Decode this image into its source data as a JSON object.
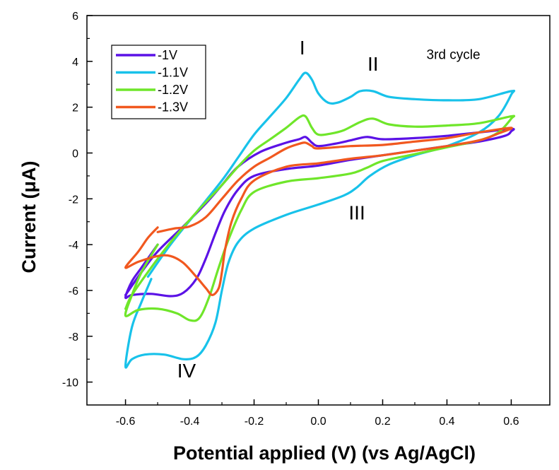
{
  "chart_data": {
    "type": "line",
    "title": "",
    "xlabel": "Potential applied (V) (vs Ag/AgCl)",
    "ylabel": "Current (μA)",
    "xlim": [
      -0.72,
      0.72
    ],
    "ylim": [
      -11,
      6
    ],
    "x_ticks": [
      -0.6,
      -0.4,
      -0.2,
      0.0,
      0.2,
      0.4,
      0.6
    ],
    "x_tick_labels": [
      "-0.6",
      "-0.4",
      "-0.2",
      "0.0",
      "0.2",
      "0.4",
      "0.6"
    ],
    "y_ticks": [
      -10,
      -8,
      -6,
      -4,
      -2,
      0,
      2,
      4,
      6
    ],
    "y_tick_labels": [
      "-10",
      "-8",
      "-6",
      "-4",
      "-2",
      "0",
      "2",
      "4",
      "6"
    ],
    "grid": false,
    "legend_position": "top-left",
    "annotations": [
      {
        "text": "3rd cycle",
        "x": 0.42,
        "y": 4.1,
        "style": "small"
      },
      {
        "text": "I",
        "x": -0.05,
        "y": 4.3,
        "style": "roman"
      },
      {
        "text": "II",
        "x": 0.17,
        "y": 3.6,
        "style": "roman"
      },
      {
        "text": "III",
        "x": 0.12,
        "y": -2.9,
        "style": "roman"
      },
      {
        "text": "IV",
        "x": -0.41,
        "y": -9.8,
        "style": "roman"
      }
    ],
    "series": [
      {
        "name": "-1V",
        "color": "#5b12e6",
        "points": [
          [
            -0.5,
            -4.0
          ],
          [
            -0.55,
            -5.0
          ],
          [
            -0.58,
            -5.6
          ],
          [
            -0.6,
            -6.3
          ],
          [
            -0.58,
            -6.2
          ],
          [
            -0.52,
            -6.15
          ],
          [
            -0.46,
            -6.25
          ],
          [
            -0.42,
            -6.1
          ],
          [
            -0.38,
            -5.5
          ],
          [
            -0.35,
            -4.6
          ],
          [
            -0.32,
            -3.5
          ],
          [
            -0.29,
            -2.5
          ],
          [
            -0.25,
            -1.6
          ],
          [
            -0.2,
            -1.0
          ],
          [
            -0.1,
            -0.7
          ],
          [
            0.0,
            -0.55
          ],
          [
            0.1,
            -0.3
          ],
          [
            0.2,
            -0.1
          ],
          [
            0.3,
            0.1
          ],
          [
            0.4,
            0.3
          ],
          [
            0.5,
            0.5
          ],
          [
            0.58,
            0.75
          ],
          [
            0.6,
            0.95
          ],
          [
            0.6,
            1.05
          ],
          [
            0.5,
            0.9
          ],
          [
            0.4,
            0.75
          ],
          [
            0.3,
            0.65
          ],
          [
            0.2,
            0.6
          ],
          [
            0.15,
            0.7
          ],
          [
            0.1,
            0.55
          ],
          [
            0.05,
            0.4
          ],
          [
            0.0,
            0.3
          ],
          [
            -0.02,
            0.45
          ],
          [
            -0.04,
            0.7
          ],
          [
            -0.06,
            0.6
          ],
          [
            -0.1,
            0.45
          ],
          [
            -0.18,
            0.05
          ],
          [
            -0.25,
            -0.6
          ],
          [
            -0.3,
            -1.4
          ],
          [
            -0.35,
            -2.2
          ],
          [
            -0.42,
            -3.2
          ],
          [
            -0.5,
            -4.3
          ],
          [
            -0.55,
            -5.2
          ],
          [
            -0.6,
            -6.2
          ]
        ]
      },
      {
        "name": "-1.1V",
        "color": "#18c2ea",
        "points": [
          [
            -0.52,
            -5.5
          ],
          [
            -0.55,
            -6.5
          ],
          [
            -0.58,
            -7.6
          ],
          [
            -0.6,
            -9.3
          ],
          [
            -0.58,
            -9.0
          ],
          [
            -0.54,
            -8.8
          ],
          [
            -0.48,
            -8.8
          ],
          [
            -0.42,
            -9.0
          ],
          [
            -0.38,
            -8.9
          ],
          [
            -0.35,
            -8.4
          ],
          [
            -0.32,
            -7.4
          ],
          [
            -0.3,
            -6.0
          ],
          [
            -0.28,
            -4.8
          ],
          [
            -0.25,
            -3.9
          ],
          [
            -0.2,
            -3.3
          ],
          [
            -0.1,
            -2.7
          ],
          [
            0.0,
            -2.25
          ],
          [
            0.08,
            -1.85
          ],
          [
            0.12,
            -1.5
          ],
          [
            0.16,
            -1.0
          ],
          [
            0.22,
            -0.5
          ],
          [
            0.3,
            -0.1
          ],
          [
            0.4,
            0.3
          ],
          [
            0.5,
            0.9
          ],
          [
            0.56,
            1.6
          ],
          [
            0.6,
            2.55
          ],
          [
            0.6,
            2.7
          ],
          [
            0.5,
            2.35
          ],
          [
            0.4,
            2.3
          ],
          [
            0.3,
            2.35
          ],
          [
            0.22,
            2.45
          ],
          [
            0.17,
            2.7
          ],
          [
            0.13,
            2.7
          ],
          [
            0.1,
            2.45
          ],
          [
            0.06,
            2.2
          ],
          [
            0.03,
            2.2
          ],
          [
            0.0,
            2.6
          ],
          [
            -0.02,
            3.2
          ],
          [
            -0.04,
            3.5
          ],
          [
            -0.06,
            3.2
          ],
          [
            -0.1,
            2.4
          ],
          [
            -0.15,
            1.6
          ],
          [
            -0.2,
            0.8
          ],
          [
            -0.25,
            -0.2
          ],
          [
            -0.3,
            -1.2
          ],
          [
            -0.38,
            -2.6
          ],
          [
            -0.46,
            -4.0
          ],
          [
            -0.53,
            -5.4
          ]
        ]
      },
      {
        "name": "-1.2V",
        "color": "#6fe62a",
        "points": [
          [
            -0.5,
            -4.0
          ],
          [
            -0.55,
            -5.2
          ],
          [
            -0.58,
            -6.2
          ],
          [
            -0.6,
            -7.1
          ],
          [
            -0.56,
            -6.85
          ],
          [
            -0.5,
            -6.8
          ],
          [
            -0.44,
            -7.0
          ],
          [
            -0.4,
            -7.3
          ],
          [
            -0.37,
            -7.2
          ],
          [
            -0.34,
            -6.3
          ],
          [
            -0.31,
            -5.0
          ],
          [
            -0.28,
            -3.8
          ],
          [
            -0.24,
            -2.5
          ],
          [
            -0.2,
            -1.7
          ],
          [
            -0.1,
            -1.25
          ],
          [
            0.0,
            -1.1
          ],
          [
            0.1,
            -0.9
          ],
          [
            0.15,
            -0.65
          ],
          [
            0.2,
            -0.35
          ],
          [
            0.3,
            -0.05
          ],
          [
            0.4,
            0.25
          ],
          [
            0.5,
            0.55
          ],
          [
            0.56,
            0.9
          ],
          [
            0.6,
            1.5
          ],
          [
            0.6,
            1.6
          ],
          [
            0.5,
            1.3
          ],
          [
            0.4,
            1.2
          ],
          [
            0.3,
            1.15
          ],
          [
            0.22,
            1.25
          ],
          [
            0.17,
            1.5
          ],
          [
            0.13,
            1.35
          ],
          [
            0.08,
            1.0
          ],
          [
            0.04,
            0.85
          ],
          [
            0.0,
            0.8
          ],
          [
            -0.02,
            1.1
          ],
          [
            -0.04,
            1.6
          ],
          [
            -0.06,
            1.55
          ],
          [
            -0.1,
            1.1
          ],
          [
            -0.15,
            0.6
          ],
          [
            -0.2,
            0.1
          ],
          [
            -0.25,
            -0.6
          ],
          [
            -0.3,
            -1.4
          ],
          [
            -0.38,
            -2.6
          ],
          [
            -0.46,
            -3.9
          ],
          [
            -0.52,
            -5.0
          ],
          [
            -0.58,
            -6.2
          ],
          [
            -0.6,
            -6.8
          ]
        ]
      },
      {
        "name": "-1.3V",
        "color": "#f1581f",
        "points": [
          [
            -0.5,
            -3.25
          ],
          [
            -0.53,
            -3.7
          ],
          [
            -0.56,
            -4.3
          ],
          [
            -0.6,
            -5.0
          ],
          [
            -0.56,
            -4.75
          ],
          [
            -0.5,
            -4.5
          ],
          [
            -0.46,
            -4.5
          ],
          [
            -0.42,
            -4.8
          ],
          [
            -0.38,
            -5.4
          ],
          [
            -0.35,
            -5.9
          ],
          [
            -0.33,
            -6.2
          ],
          [
            -0.31,
            -5.9
          ],
          [
            -0.3,
            -5.2
          ],
          [
            -0.29,
            -4.2
          ],
          [
            -0.27,
            -3.0
          ],
          [
            -0.24,
            -2.0
          ],
          [
            -0.2,
            -1.2
          ],
          [
            -0.1,
            -0.6
          ],
          [
            0.0,
            -0.45
          ],
          [
            0.1,
            -0.25
          ],
          [
            0.2,
            -0.1
          ],
          [
            0.3,
            0.1
          ],
          [
            0.4,
            0.3
          ],
          [
            0.5,
            0.55
          ],
          [
            0.56,
            0.85
          ],
          [
            0.6,
            1.1
          ],
          [
            0.5,
            0.9
          ],
          [
            0.4,
            0.65
          ],
          [
            0.3,
            0.5
          ],
          [
            0.2,
            0.35
          ],
          [
            0.1,
            0.3
          ],
          [
            0.0,
            0.2
          ],
          [
            -0.02,
            0.3
          ],
          [
            -0.04,
            0.45
          ],
          [
            -0.06,
            0.4
          ],
          [
            -0.1,
            0.2
          ],
          [
            -0.15,
            -0.2
          ],
          [
            -0.2,
            -0.6
          ],
          [
            -0.25,
            -1.2
          ],
          [
            -0.3,
            -2.0
          ],
          [
            -0.35,
            -2.8
          ],
          [
            -0.4,
            -3.2
          ],
          [
            -0.45,
            -3.3
          ],
          [
            -0.5,
            -3.45
          ]
        ]
      }
    ]
  }
}
